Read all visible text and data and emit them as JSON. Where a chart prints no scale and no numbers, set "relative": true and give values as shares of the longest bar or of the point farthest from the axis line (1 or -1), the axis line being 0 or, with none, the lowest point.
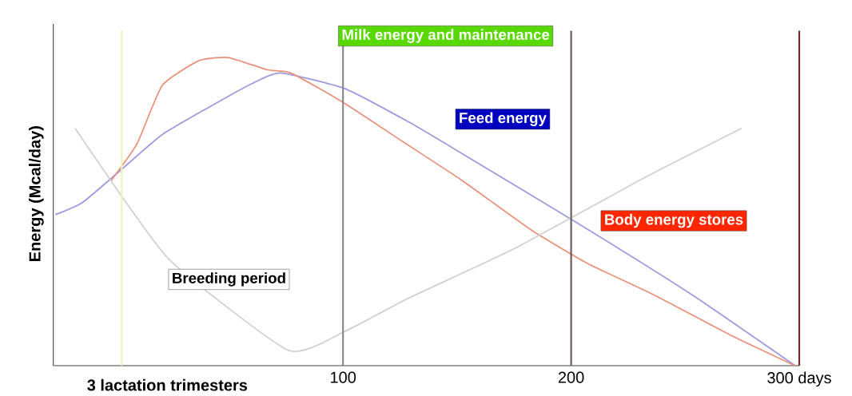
{
  "chart_data": {
    "type": "line",
    "relative": true,
    "xlabel": "3 lactation trimesters",
    "ylabel": "Energy (Mcal/day)",
    "xlim": [
      -27,
      300
    ],
    "xticks": [
      100,
      200,
      {
        "value": 300,
        "label": "300 days"
      }
    ],
    "series": [
      {
        "color": "#9a9ae0",
        "x": [
          -26.1,
          -14.1,
          3.4,
          20.8,
          43.9,
          61.3,
          72.7,
          100.5,
          129.0,
          151.8,
          203.4,
          253.0,
          298.2
        ],
        "values": [
          0.49,
          0.53,
          0.64,
          0.75,
          0.85,
          0.92,
          0.95,
          0.9,
          0.79,
          0.69,
          0.46,
          0.23,
          0
        ]
      },
      {
        "color": "#e8907a",
        "x": [
          -1.7,
          9.7,
          20.8,
          36.9,
          49.6,
          67.0,
          77.1,
          98.8,
          125.6,
          152.4,
          182.6,
          207.7,
          236.2,
          269.7,
          298.2
        ],
        "values": [
          0.6,
          0.72,
          0.91,
          0.99,
          1.0,
          0.96,
          0.95,
          0.86,
          0.73,
          0.6,
          0.44,
          0.33,
          0.23,
          0.1,
          0
        ]
      },
      {
        "color": "#d0d0d0",
        "x": [
          -17.4,
          23.1,
          76.0,
          100.5,
          129.0,
          175.2,
          232.2,
          274.7
        ],
        "values": [
          0.77,
          0.35,
          0.05,
          0.11,
          0.22,
          0.38,
          0.61,
          0.77
        ]
      }
    ],
    "ref_lines": [
      {
        "axis": "x",
        "value": 3,
        "color": "#eef2b8"
      },
      {
        "axis": "x",
        "value": 100,
        "color": "#888888"
      },
      {
        "axis": "x",
        "value": 200,
        "color": "#6a5a55"
      },
      {
        "axis": "x",
        "value": 300,
        "color": "#7a2a1a"
      }
    ],
    "annotations": [
      "Milk energy and maintenance",
      "Feed energy",
      "Body energy stores",
      "Breeding period"
    ],
    "grid": false,
    "marker": "none",
    "line_style": "solid"
  }
}
